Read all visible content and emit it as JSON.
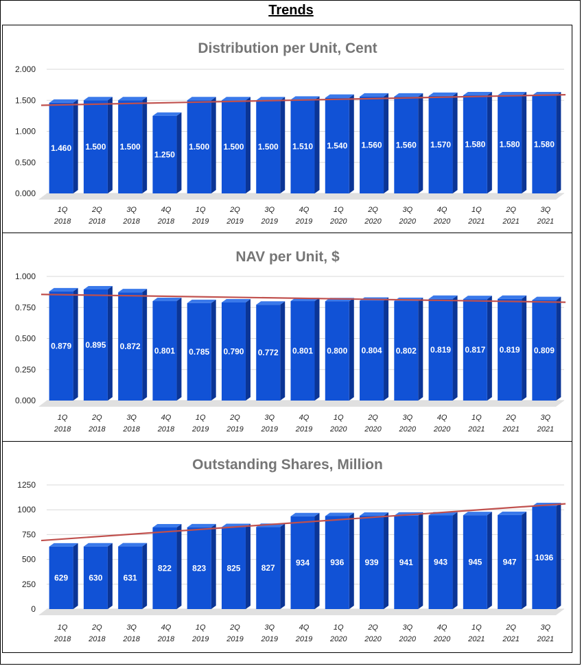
{
  "page": {
    "title": "Trends"
  },
  "colors": {
    "bar_front": "#1152d6",
    "bar_side": "#0b3596",
    "bar_top": "#3a79ea",
    "trend": "#c0504d",
    "grid": "#d9d9d9",
    "title_text": "#757575",
    "floor": "#e0e0e0"
  },
  "chart_data": [
    {
      "type": "bar",
      "title": "Distribution per Unit, Cent",
      "categories": [
        "1Q 2018",
        "2Q 2018",
        "3Q 2018",
        "4Q 2018",
        "1Q 2019",
        "2Q 2019",
        "3Q 2019",
        "4Q 2019",
        "1Q 2020",
        "2Q 2020",
        "3Q 2020",
        "4Q 2020",
        "1Q 2021",
        "2Q 2021",
        "3Q 2021"
      ],
      "values": [
        1.46,
        1.5,
        1.5,
        1.25,
        1.5,
        1.5,
        1.5,
        1.51,
        1.54,
        1.56,
        1.56,
        1.57,
        1.58,
        1.58,
        1.58
      ],
      "data_labels": [
        "1.460",
        "1.500",
        "1.500",
        "1.250",
        "1.500",
        "1.500",
        "1.500",
        "1.510",
        "1.540",
        "1.560",
        "1.560",
        "1.570",
        "1.580",
        "1.580",
        "1.580"
      ],
      "yticks": [
        "0.000",
        "0.500",
        "1.000",
        "1.500",
        "2.000"
      ],
      "ylim": [
        0,
        2
      ],
      "trendline": [
        1.42,
        1.59
      ],
      "xlabel": "",
      "ylabel": ""
    },
    {
      "type": "bar",
      "title": "NAV per Unit, $",
      "categories": [
        "1Q 2018",
        "2Q 2018",
        "3Q 2018",
        "4Q 2018",
        "1Q 2019",
        "2Q 2019",
        "3Q 2019",
        "4Q 2019",
        "1Q 2020",
        "2Q 2020",
        "3Q 2020",
        "4Q 2020",
        "1Q 2021",
        "2Q 2021",
        "3Q 2021"
      ],
      "values": [
        0.879,
        0.895,
        0.872,
        0.801,
        0.785,
        0.79,
        0.772,
        0.801,
        0.8,
        0.804,
        0.802,
        0.819,
        0.817,
        0.819,
        0.809
      ],
      "data_labels": [
        "0.879",
        "0.895",
        "0.872",
        "0.801",
        "0.785",
        "0.790",
        "0.772",
        "0.801",
        "0.800",
        "0.804",
        "0.802",
        "0.819",
        "0.817",
        "0.819",
        "0.809"
      ],
      "yticks": [
        "0.000",
        "0.250",
        "0.500",
        "0.750",
        "1.000"
      ],
      "ylim": [
        0,
        1
      ],
      "trendline": [
        0.855,
        0.792
      ],
      "xlabel": "",
      "ylabel": ""
    },
    {
      "type": "bar",
      "title": "Outstanding Shares, Million",
      "categories": [
        "1Q 2018",
        "2Q 2018",
        "3Q 2018",
        "4Q 2018",
        "1Q 2019",
        "2Q 2019",
        "3Q 2019",
        "4Q 2019",
        "1Q 2020",
        "2Q 2020",
        "3Q 2020",
        "4Q 2020",
        "1Q 2021",
        "2Q 2021",
        "3Q 2021"
      ],
      "values": [
        629,
        630,
        631,
        822,
        823,
        825,
        827,
        934,
        936,
        939,
        941,
        943,
        945,
        947,
        1036
      ],
      "data_labels": [
        "629",
        "630",
        "631",
        "822",
        "823",
        "825",
        "827",
        "934",
        "936",
        "939",
        "941",
        "943",
        "945",
        "947",
        "1036"
      ],
      "yticks": [
        "0",
        "250",
        "500",
        "750",
        "1000",
        "1250"
      ],
      "ylim": [
        0,
        1250
      ],
      "trendline": [
        690,
        1060
      ],
      "xlabel": "",
      "ylabel": ""
    }
  ]
}
